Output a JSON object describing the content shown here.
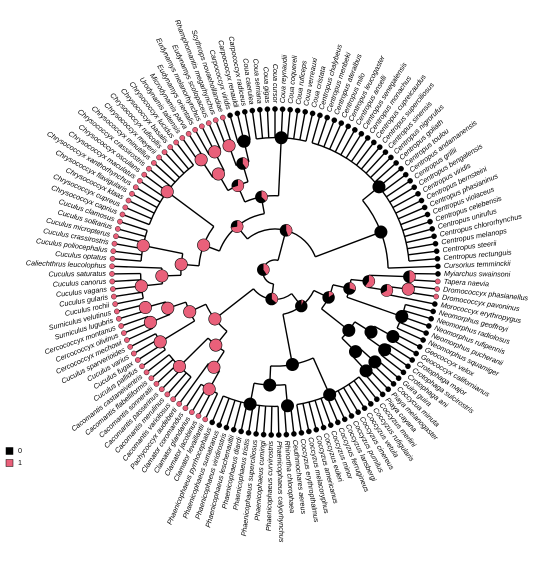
{
  "tree": {
    "tips": [
      {
        "label": "Cursorius temminckii",
        "state": 0
      },
      {
        "label": "Centropus rectunguis",
        "state": 0
      },
      {
        "label": "Centropus steerii",
        "state": 0
      },
      {
        "label": "Centropus melanops",
        "state": 0
      },
      {
        "label": "Centropus chlororhynchus",
        "state": 0
      },
      {
        "label": "Centropus unirufus",
        "state": 0
      },
      {
        "label": "Centropus celebensis",
        "state": 0
      },
      {
        "label": "Centropus violaceus",
        "state": 0
      },
      {
        "label": "Centropus phasianinus",
        "state": 0
      },
      {
        "label": "Centropus bernsteini",
        "state": 0
      },
      {
        "label": "Centropus viridis",
        "state": 0
      },
      {
        "label": "Centropus bengalensis",
        "state": 0
      },
      {
        "label": "Centropus grillii",
        "state": 0
      },
      {
        "label": "Centropus andamanensis",
        "state": 0
      },
      {
        "label": "Centropus toulou",
        "state": 0
      },
      {
        "label": "Centropus goliath",
        "state": 0
      },
      {
        "label": "Centropus nigrorufus",
        "state": 0
      },
      {
        "label": "Centropus sinensis",
        "state": 0
      },
      {
        "label": "Centropus superciliosus",
        "state": 0
      },
      {
        "label": "Centropus cupreicaudus",
        "state": 0
      },
      {
        "label": "Centropus monachus",
        "state": 0
      },
      {
        "label": "Centropus senegalensis",
        "state": 0
      },
      {
        "label": "Centropus anselli",
        "state": 0
      },
      {
        "label": "Centropus leucogaster",
        "state": 0
      },
      {
        "label": "Centropus milo",
        "state": 0
      },
      {
        "label": "Centropus ateralbus",
        "state": 0
      },
      {
        "label": "Centropus menbeki",
        "state": 0
      },
      {
        "label": "Centropus chalybeus",
        "state": 0
      },
      {
        "label": "Coua cristata",
        "state": 0
      },
      {
        "label": "Coua verreauxi",
        "state": 0
      },
      {
        "label": "Coua ruficeps",
        "state": 0
      },
      {
        "label": "Coua coquereli",
        "state": 0
      },
      {
        "label": "Coua reynaudii",
        "state": 0
      },
      {
        "label": "Coua cursor",
        "state": 0
      },
      {
        "label": "Coua gigas",
        "state": 0
      },
      {
        "label": "Coua serriana",
        "state": 0
      },
      {
        "label": "Coua caerulea",
        "state": 0
      },
      {
        "label": "Carpococcyx radiceus",
        "state": 0
      },
      {
        "label": "Carpococcyx renauldi",
        "state": 0
      },
      {
        "label": "Carpococcyx viridis",
        "state": 0
      },
      {
        "label": "Scythrops novaehollandiae",
        "state": 1
      },
      {
        "label": "Rhamphomantis megarhynchus",
        "state": 1
      },
      {
        "label": "Eudynamys scolopaceus",
        "state": 1
      },
      {
        "label": "Eudynamys melanorhynchus",
        "state": 1
      },
      {
        "label": "Eudynamys orientalis",
        "state": 1
      },
      {
        "label": "Microdynamis parva",
        "state": 1
      },
      {
        "label": "Urodynamis taitensis",
        "state": 1
      },
      {
        "label": "Chrysococcyx lucidus",
        "state": 1
      },
      {
        "label": "Chrysococcyx basalis",
        "state": 1
      },
      {
        "label": "Chrysococcyx ruficollis",
        "state": 1
      },
      {
        "label": "Chrysococcyx meyerii",
        "state": 1
      },
      {
        "label": "Chrysococcyx minutillus",
        "state": 1
      },
      {
        "label": "Chrysococcyx crassirostris",
        "state": 1
      },
      {
        "label": "Chrysococcyx osculans",
        "state": 1
      },
      {
        "label": "Chrysococcyx maculatus",
        "state": 1
      },
      {
        "label": "Chrysococcyx xanthorhynchus",
        "state": 1
      },
      {
        "label": "Chrysococcyx flavigularis",
        "state": 1
      },
      {
        "label": "Chrysococcyx klaas",
        "state": 1
      },
      {
        "label": "Chrysococcyx cupreus",
        "state": 1
      },
      {
        "label": "Chrysococcyx caprius",
        "state": 1
      },
      {
        "label": "Cuculus clamosus",
        "state": 1
      },
      {
        "label": "Cuculus solitarius",
        "state": 1
      },
      {
        "label": "Cuculus micropterus",
        "state": 1
      },
      {
        "label": "Cuculus crassirostris",
        "state": 1
      },
      {
        "label": "Cuculus poliocephalus",
        "state": 1
      },
      {
        "label": "Cuculus optatus",
        "state": 1
      },
      {
        "label": "Caliechthrus leucolophus",
        "state": 1
      },
      {
        "label": "Cuculus saturatus",
        "state": 1
      },
      {
        "label": "Cuculus canorus",
        "state": 1
      },
      {
        "label": "Cuculus vagans",
        "state": 1
      },
      {
        "label": "Cuculus gularis",
        "state": 1
      },
      {
        "label": "Cuculus rochii",
        "state": 1
      },
      {
        "label": "Surniculus velutinus",
        "state": 1
      },
      {
        "label": "Surniculus lugubris",
        "state": 1
      },
      {
        "label": "Cercococcyx montanus",
        "state": 1
      },
      {
        "label": "Cercococcyx olivinus",
        "state": 1
      },
      {
        "label": "Cercococcyx mechowi",
        "state": 1
      },
      {
        "label": "Cuculus sparverioides",
        "state": 1
      },
      {
        "label": "Cuculus varius",
        "state": 1
      },
      {
        "label": "Cuculus fugax",
        "state": 1
      },
      {
        "label": "Cuculus pallidus",
        "state": 1
      },
      {
        "label": "Cacomantis castaneiventris",
        "state": 1
      },
      {
        "label": "Cacomantis flabelliformis",
        "state": 1
      },
      {
        "label": "Cacomantis sonneratii",
        "state": 1
      },
      {
        "label": "Cacomantis passerinus",
        "state": 1
      },
      {
        "label": "Cacomantis merulinus",
        "state": 1
      },
      {
        "label": "Cacomantis variolosus",
        "state": 1
      },
      {
        "label": "Pachycoccyx audeberti",
        "state": 1
      },
      {
        "label": "Clamator coromandus",
        "state": 1
      },
      {
        "label": "Clamator glandarius",
        "state": 1
      },
      {
        "label": "Clamator jacobinus",
        "state": 1
      },
      {
        "label": "Clamator levaillantii",
        "state": 1
      },
      {
        "label": "Phaenicophaeus pyrrhocephalus",
        "state": 0
      },
      {
        "label": "Phaenicophaeus sumatranus",
        "state": 0
      },
      {
        "label": "Phaenicophaeus viridirostris",
        "state": 0
      },
      {
        "label": "Phaenicophaeus leschenaultii",
        "state": 0
      },
      {
        "label": "Phaenicophaeus diardi",
        "state": 0
      },
      {
        "label": "Phaenicophaeus tristis",
        "state": 0
      },
      {
        "label": "Phaenicophaeus superciliosus",
        "state": 0
      },
      {
        "label": "Phaenicophaeus cumingi",
        "state": 0
      },
      {
        "label": "Phaenicophaeus curvirostris",
        "state": 0
      },
      {
        "label": "Phaenicophaeus calyorhynchus",
        "state": 0
      },
      {
        "label": "Rhinortha chlorophaea",
        "state": 0
      },
      {
        "label": "Ceuthmochares aereus",
        "state": 0
      },
      {
        "label": "Coccyzus erythropthalmus",
        "state": 0
      },
      {
        "label": "Coccyzus melacoryphus",
        "state": 0
      },
      {
        "label": "Coccyzus americanus",
        "state": 0
      },
      {
        "label": "Coccyzus euleri",
        "state": 0
      },
      {
        "label": "Coccyzus minor",
        "state": 0
      },
      {
        "label": "Coccyzus ferrugineus",
        "state": 0
      },
      {
        "label": "Coccyzus lansbergi",
        "state": 0
      },
      {
        "label": "Coccyzus pumilus",
        "state": 0
      },
      {
        "label": "Coccyzus cinereus",
        "state": 0
      },
      {
        "label": "Coccyzus vetula",
        "state": 0
      },
      {
        "label": "Coccyzus rufigularis",
        "state": 0
      },
      {
        "label": "Coccyzus merlini",
        "state": 0
      },
      {
        "label": "Piaya cayana",
        "state": 0
      },
      {
        "label": "Piaya melanogaster",
        "state": 0
      },
      {
        "label": "Coccycua minuta",
        "state": 0
      },
      {
        "label": "Guira guira",
        "state": 0
      },
      {
        "label": "Crotophaga ani",
        "state": 0
      },
      {
        "label": "Crotophaga sulcirostris",
        "state": 0
      },
      {
        "label": "Crotophaga major",
        "state": 0
      },
      {
        "label": "Geococcyx californianus",
        "state": 0
      },
      {
        "label": "Geococcyx velox",
        "state": 0
      },
      {
        "label": "Neomorphus squamiger",
        "state": 0
      },
      {
        "label": "Neomorphus pucheranii",
        "state": 0
      },
      {
        "label": "Neomorphus rufipennis",
        "state": 0
      },
      {
        "label": "Neomorphus radiolosus",
        "state": 0
      },
      {
        "label": "Neomorphus geoffroyi",
        "state": 0
      },
      {
        "label": "Morococcyx erythropygus",
        "state": 0
      },
      {
        "label": "Dromococcyx pavoninus",
        "state": 1
      },
      {
        "label": "Dromococcyx phasianellus",
        "state": 1
      },
      {
        "label": "Tapera naevia",
        "state": 1
      },
      {
        "label": "Myiarchus swainsoni",
        "state": 0
      }
    ],
    "legend": [
      {
        "value": 0,
        "color": "#000000"
      },
      {
        "value": 1,
        "color": "#e9607a"
      }
    ]
  }
}
